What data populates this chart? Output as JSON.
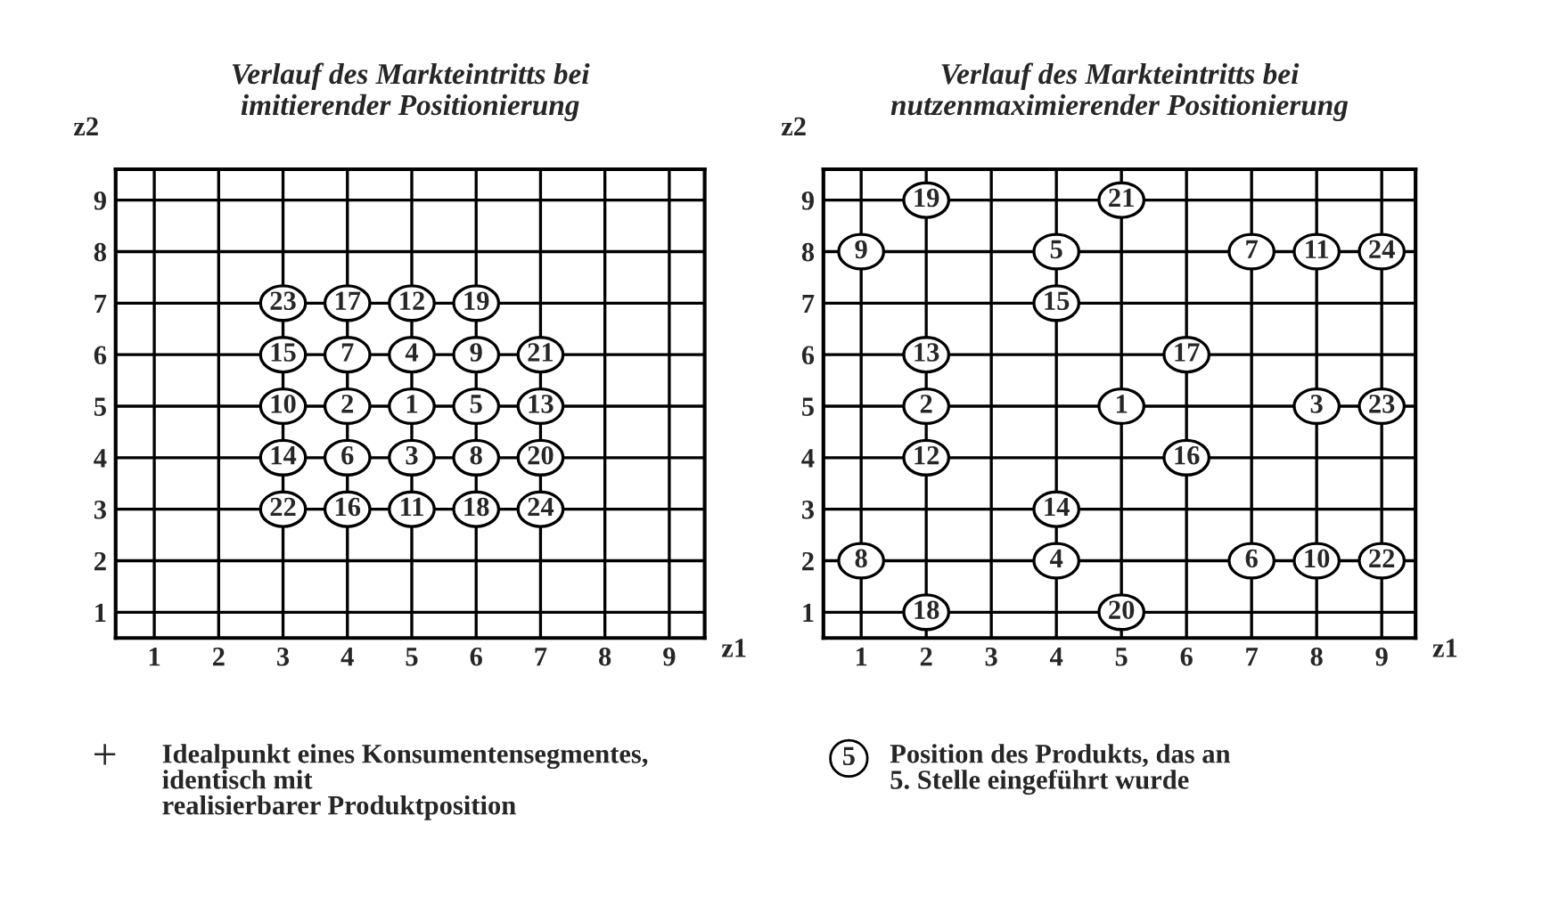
{
  "chart_data": [
    {
      "type": "scatter",
      "title": "Verlauf des Markteintritts bei\nimitierender Positionierung",
      "xlabel": "z1",
      "ylabel": "z2",
      "xlim": [
        0.4,
        9.55
      ],
      "ylim": [
        0.5,
        9.6
      ],
      "xticks": [
        1,
        2,
        3,
        4,
        5,
        6,
        7,
        8,
        9
      ],
      "yticks": [
        1,
        2,
        3,
        4,
        5,
        6,
        7,
        8,
        9
      ],
      "grid": true,
      "marker": "circle",
      "series": [
        {
          "color": "#000000",
          "x": [
            3,
            4,
            5,
            6,
            3,
            4,
            5,
            6,
            7,
            3,
            4,
            5,
            6,
            7,
            3,
            4,
            5,
            6,
            7,
            3,
            4,
            5,
            6,
            7
          ],
          "values": [
            7,
            7,
            7,
            7,
            6,
            6,
            6,
            6,
            6,
            5,
            5,
            5,
            5,
            5,
            4,
            4,
            4,
            4,
            4,
            3,
            3,
            3,
            3,
            3
          ]
        }
      ],
      "annotations": [
        {
          "text": "23",
          "x": 3,
          "y": 7
        },
        {
          "text": "17",
          "x": 4,
          "y": 7
        },
        {
          "text": "12",
          "x": 5,
          "y": 7
        },
        {
          "text": "19",
          "x": 6,
          "y": 7
        },
        {
          "text": "15",
          "x": 3,
          "y": 6
        },
        {
          "text": "7",
          "x": 4,
          "y": 6
        },
        {
          "text": "4",
          "x": 5,
          "y": 6
        },
        {
          "text": "9",
          "x": 6,
          "y": 6
        },
        {
          "text": "21",
          "x": 7,
          "y": 6
        },
        {
          "text": "10",
          "x": 3,
          "y": 5
        },
        {
          "text": "2",
          "x": 4,
          "y": 5
        },
        {
          "text": "1",
          "x": 5,
          "y": 5
        },
        {
          "text": "5",
          "x": 6,
          "y": 5
        },
        {
          "text": "13",
          "x": 7,
          "y": 5
        },
        {
          "text": "14",
          "x": 3,
          "y": 4
        },
        {
          "text": "6",
          "x": 4,
          "y": 4
        },
        {
          "text": "3",
          "x": 5,
          "y": 4
        },
        {
          "text": "8",
          "x": 6,
          "y": 4
        },
        {
          "text": "20",
          "x": 7,
          "y": 4
        },
        {
          "text": "22",
          "x": 3,
          "y": 3
        },
        {
          "text": "16",
          "x": 4,
          "y": 3
        },
        {
          "text": "11",
          "x": 5,
          "y": 3
        },
        {
          "text": "18",
          "x": 6,
          "y": 3
        },
        {
          "text": "24",
          "x": 7,
          "y": 3
        },
        "+",
        "Idealpunkt eines Konsumentensegmentes,\nidentisch mit\nrealisierbarer Produktposition"
      ]
    },
    {
      "type": "scatter",
      "title": "Verlauf des Markteintritts bei\nnutzenmaximierender Positionierung",
      "xlabel": "z1",
      "ylabel": "z2",
      "xlim": [
        0.42,
        9.52
      ],
      "ylim": [
        0.5,
        9.6
      ],
      "xticks": [
        1,
        2,
        3,
        4,
        5,
        6,
        7,
        8,
        9
      ],
      "yticks": [
        1,
        2,
        3,
        4,
        5,
        6,
        7,
        8,
        9
      ],
      "grid": true,
      "marker": "circle",
      "series": [
        {
          "color": "#000000",
          "x": [
            2,
            5,
            1,
            4,
            7,
            8,
            9,
            4,
            2,
            6,
            2,
            5,
            8,
            9,
            2,
            6,
            4,
            1,
            4,
            7,
            8,
            9,
            2,
            5
          ],
          "values": [
            9,
            9,
            8,
            8,
            8,
            8,
            8,
            7,
            6,
            6,
            5,
            5,
            5,
            5,
            4,
            4,
            3,
            2,
            2,
            2,
            2,
            2,
            1,
            1
          ]
        }
      ],
      "annotations": [
        {
          "text": "19",
          "x": 2,
          "y": 9
        },
        {
          "text": "21",
          "x": 5,
          "y": 9
        },
        {
          "text": "9",
          "x": 1,
          "y": 8
        },
        {
          "text": "5",
          "x": 4,
          "y": 8
        },
        {
          "text": "7",
          "x": 7,
          "y": 8
        },
        {
          "text": "11",
          "x": 8,
          "y": 8
        },
        {
          "text": "24",
          "x": 9,
          "y": 8
        },
        {
          "text": "15",
          "x": 4,
          "y": 7
        },
        {
          "text": "13",
          "x": 2,
          "y": 6
        },
        {
          "text": "17",
          "x": 6,
          "y": 6
        },
        {
          "text": "2",
          "x": 2,
          "y": 5
        },
        {
          "text": "1",
          "x": 5,
          "y": 5
        },
        {
          "text": "3",
          "x": 8,
          "y": 5
        },
        {
          "text": "23",
          "x": 9,
          "y": 5
        },
        {
          "text": "12",
          "x": 2,
          "y": 4
        },
        {
          "text": "16",
          "x": 6,
          "y": 4
        },
        {
          "text": "14",
          "x": 4,
          "y": 3
        },
        {
          "text": "8",
          "x": 1,
          "y": 2
        },
        {
          "text": "4",
          "x": 4,
          "y": 2
        },
        {
          "text": "6",
          "x": 7,
          "y": 2
        },
        {
          "text": "10",
          "x": 8,
          "y": 2
        },
        {
          "text": "22",
          "x": 9,
          "y": 2
        },
        {
          "text": "18",
          "x": 2,
          "y": 1
        },
        {
          "text": "20",
          "x": 5,
          "y": 1
        },
        "5",
        "Position des Produkts, das an\n5. Stelle eingeführt wurde"
      ]
    }
  ]
}
